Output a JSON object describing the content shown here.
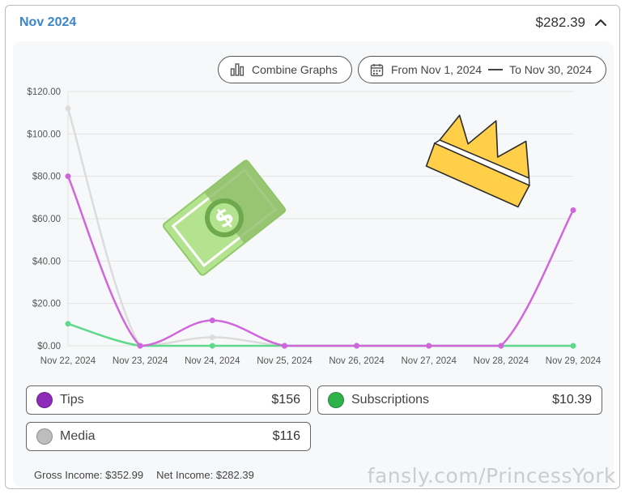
{
  "header": {
    "month": "Nov 2024",
    "total": "$282.39"
  },
  "toolbar": {
    "combine_label": "Combine Graphs",
    "date_from": "From Nov 1, 2024",
    "date_to": "To Nov 30, 2024"
  },
  "chart_data": {
    "type": "line",
    "x": [
      "Nov 22, 2024",
      "Nov 23, 2024",
      "Nov 24, 2024",
      "Nov 25, 2024",
      "Nov 26, 2024",
      "Nov 27, 2024",
      "Nov 28, 2024",
      "Nov 29, 2024"
    ],
    "y_ticks": [
      "$0.00",
      "$20.00",
      "$40.00",
      "$60.00",
      "$80.00",
      "$100.00",
      "$120.00"
    ],
    "ylim": [
      0,
      120
    ],
    "grid": true,
    "series": [
      {
        "name": "Media",
        "color": "#dcdcdc",
        "values": [
          112,
          0,
          4,
          0,
          0,
          0,
          0,
          0
        ]
      },
      {
        "name": "Subscriptions",
        "color": "#5fd98a",
        "values": [
          10.39,
          0,
          0,
          0,
          0,
          0,
          0,
          0
        ]
      },
      {
        "name": "Tips",
        "color": "#d066dc",
        "values": [
          80,
          0,
          12,
          0,
          0,
          0,
          0,
          64
        ]
      }
    ]
  },
  "legend": {
    "tips": {
      "label": "Tips",
      "amount": "$156",
      "color": "#8e2bb8"
    },
    "subscriptions": {
      "label": "Subscriptions",
      "amount": "$10.39",
      "color": "#2db34a"
    },
    "media": {
      "label": "Media",
      "amount": "$116",
      "color": "#bdbdbd"
    }
  },
  "footer": {
    "gross": "Gross Income: $352.99",
    "net": "Net Income: $282.39"
  },
  "watermark": "fansly.com/PrincessYork"
}
